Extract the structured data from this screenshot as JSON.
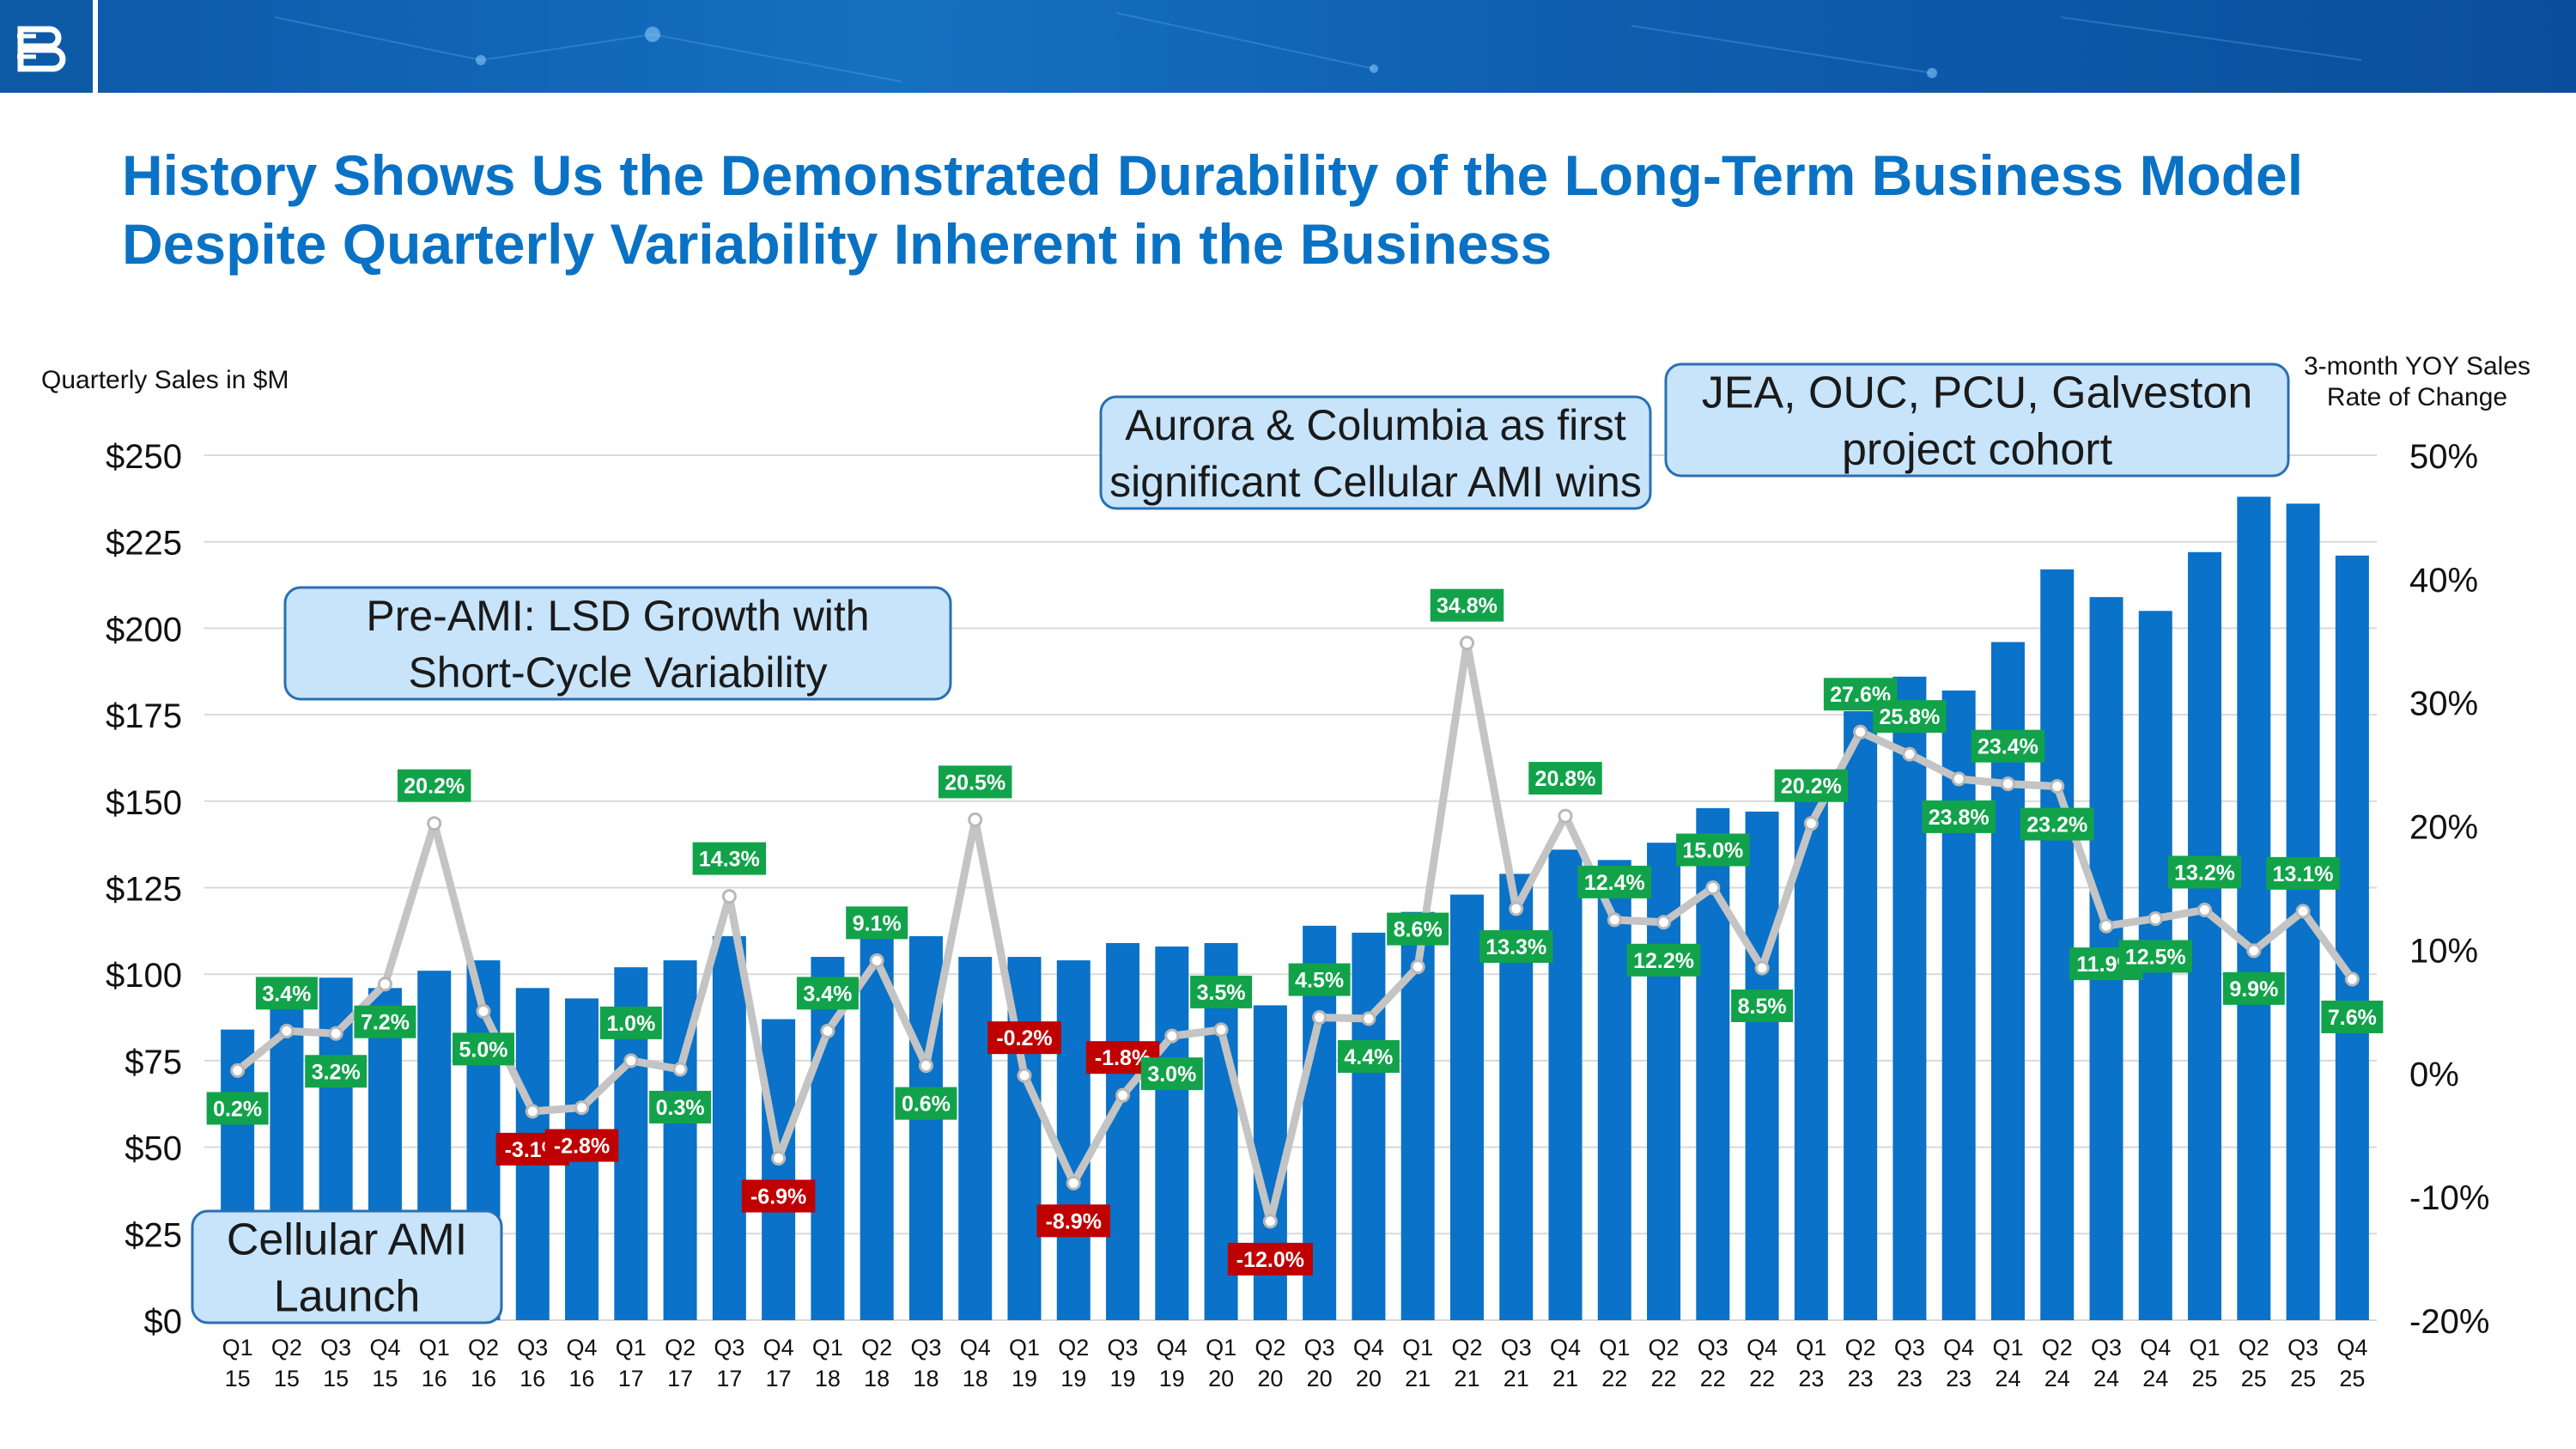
{
  "header": {
    "title": "History Shows Us the Demonstrated Durability of the Long-Term Business Model Despite Quarterly Variability Inherent in the Business"
  },
  "colors": {
    "bar": "#0a72c8",
    "line": "#c4c4c4",
    "positive_label": "#12a34a",
    "negative_label": "#c00000",
    "callout_fill": "#c7e4fb",
    "callout_border": "#2a6fb0",
    "title": "#0a72c4"
  },
  "chart_data": {
    "type": "bar",
    "ylabel_left": "Quarterly Sales in $M",
    "ylabel_right": [
      "3-month YOY Sales",
      "Rate of Change"
    ],
    "ylim_left": [
      0,
      250
    ],
    "left_ticks": [
      "$0",
      "$25",
      "$50",
      "$75",
      "$100",
      "$125",
      "$150",
      "$175",
      "$200",
      "$225",
      "$250"
    ],
    "ylim_right": [
      -20,
      50
    ],
    "right_ticks": [
      "-20%",
      "-10%",
      "0%",
      "10%",
      "20%",
      "30%",
      "40%",
      "50%"
    ],
    "grid": true,
    "categories": [
      [
        "Q1",
        "15"
      ],
      [
        "Q2",
        "15"
      ],
      [
        "Q3",
        "15"
      ],
      [
        "Q4",
        "15"
      ],
      [
        "Q1",
        "16"
      ],
      [
        "Q2",
        "16"
      ],
      [
        "Q3",
        "16"
      ],
      [
        "Q4",
        "16"
      ],
      [
        "Q1",
        "17"
      ],
      [
        "Q2",
        "17"
      ],
      [
        "Q3",
        "17"
      ],
      [
        "Q4",
        "17"
      ],
      [
        "Q1",
        "18"
      ],
      [
        "Q2",
        "18"
      ],
      [
        "Q3",
        "18"
      ],
      [
        "Q4",
        "18"
      ],
      [
        "Q1",
        "19"
      ],
      [
        "Q2",
        "19"
      ],
      [
        "Q3",
        "19"
      ],
      [
        "Q4",
        "19"
      ],
      [
        "Q1",
        "20"
      ],
      [
        "Q2",
        "20"
      ],
      [
        "Q3",
        "20"
      ],
      [
        "Q4",
        "20"
      ],
      [
        "Q1",
        "21"
      ],
      [
        "Q2",
        "21"
      ],
      [
        "Q3",
        "21"
      ],
      [
        "Q4",
        "21"
      ],
      [
        "Q1",
        "22"
      ],
      [
        "Q2",
        "22"
      ],
      [
        "Q3",
        "22"
      ],
      [
        "Q4",
        "22"
      ],
      [
        "Q1",
        "23"
      ],
      [
        "Q2",
        "23"
      ],
      [
        "Q3",
        "23"
      ],
      [
        "Q4",
        "23"
      ],
      [
        "Q1",
        "24"
      ],
      [
        "Q2",
        "24"
      ],
      [
        "Q3",
        "24"
      ],
      [
        "Q4",
        "24"
      ],
      [
        "Q1",
        "25"
      ],
      [
        "Q2",
        "25"
      ],
      [
        "Q3",
        "25"
      ],
      [
        "Q4",
        "25"
      ]
    ],
    "series": [
      {
        "type": "bar",
        "axis": "left",
        "values": [
          84,
          93,
          99,
          96,
          101,
          104,
          96,
          93,
          102,
          104,
          111,
          87,
          105,
          115,
          111,
          105,
          105,
          104,
          109,
          108,
          109,
          91,
          114,
          112,
          118,
          123,
          129,
          136,
          133,
          138,
          148,
          147,
          159,
          176,
          186,
          182,
          196,
          217,
          209,
          205,
          222,
          238,
          236,
          221
        ]
      },
      {
        "type": "line",
        "axis": "right",
        "values": [
          0.2,
          3.4,
          3.2,
          7.2,
          20.2,
          5.0,
          -3.1,
          -2.8,
          1.0,
          0.3,
          14.3,
          -6.9,
          3.4,
          9.1,
          0.6,
          20.5,
          -0.2,
          -8.9,
          -1.8,
          3.0,
          3.5,
          -12.0,
          4.5,
          4.4,
          8.6,
          34.8,
          13.3,
          20.8,
          12.4,
          12.2,
          15.0,
          8.5,
          20.2,
          27.6,
          25.8,
          23.8,
          23.4,
          23.2,
          11.9,
          12.5,
          13.2,
          9.9,
          13.1,
          7.6
        ],
        "labels": [
          "0.2%",
          "3.4%",
          "3.2%",
          "7.2%",
          "20.2%",
          "5.0%",
          "-3.1%",
          "-2.8%",
          "1.0%",
          "0.3%",
          "14.3%",
          "-6.9%",
          "3.4%",
          "9.1%",
          "0.6%",
          "20.5%",
          "-0.2%",
          "-8.9%",
          "-1.8%",
          "3.0%",
          "3.5%",
          "-12.0%",
          "4.5%",
          "4.4%",
          "8.6%",
          "34.8%",
          "13.3%",
          "20.8%",
          "12.4%",
          "12.2%",
          "15.0%",
          "8.5%",
          "20.2%",
          "27.6%",
          "25.8%",
          "23.8%",
          "23.4%",
          "23.2%",
          "11.9%",
          "12.5%",
          "13.2%",
          "9.9%",
          "13.1%",
          "7.6%"
        ]
      }
    ],
    "annotations": [
      {
        "lines": [
          "Pre-AMI: LSD Growth with",
          "Short-Cycle Variability"
        ]
      },
      {
        "lines": [
          "Aurora & Columbia as first",
          "significant Cellular AMI wins"
        ]
      },
      {
        "lines": [
          "JEA, OUC, PCU, Galveston",
          "project cohort"
        ]
      },
      {
        "lines": [
          "Cellular AMI",
          "Launch"
        ]
      }
    ]
  }
}
